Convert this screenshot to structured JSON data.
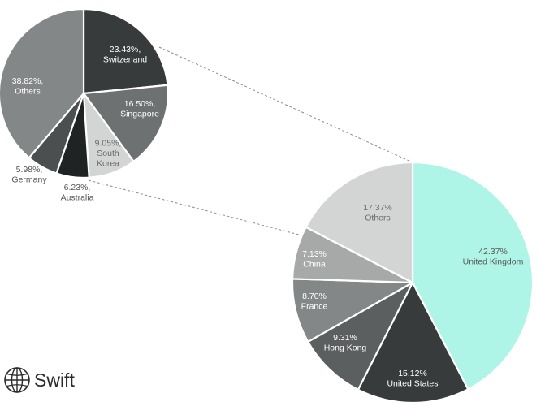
{
  "chart_data": [
    {
      "type": "pie",
      "unit": "%",
      "slices": [
        {
          "label": "United Kingdom",
          "value": 42.37,
          "value_text": "42.37%",
          "color": "#aef5e8",
          "text_color": "#5a5a5a"
        },
        {
          "label": "United States",
          "value": 15.12,
          "value_text": "15.12%",
          "color": "#373b3b",
          "text_color": "#ffffff"
        },
        {
          "label": "Hong Kong",
          "value": 9.31,
          "value_text": "9.31%",
          "color": "#5c5f5f",
          "text_color": "#ffffff"
        },
        {
          "label": "France",
          "value": 8.7,
          "value_text": "8.70%",
          "color": "#848787",
          "text_color": "#ffffff"
        },
        {
          "label": "China",
          "value": 7.13,
          "value_text": "7.13%",
          "color": "#a7a9a9",
          "text_color": "#ffffff"
        },
        {
          "label": "Others",
          "value": 17.37,
          "value_text": "17.37%",
          "color": "#d3d4d4",
          "text_color": "#6b6b6b"
        }
      ]
    },
    {
      "type": "pie",
      "unit": "%",
      "slices": [
        {
          "label": "Switzerland",
          "value": 23.43,
          "value_text": "23.43%,",
          "color": "#373b3b",
          "text_color": "#ffffff"
        },
        {
          "label": "Singapore",
          "value": 16.5,
          "value_text": "16.50%,",
          "color": "#6e7171",
          "text_color": "#ffffff"
        },
        {
          "label": "South Korea",
          "value": 9.05,
          "value_text": "9.05%,",
          "color": "#d3d4d4",
          "text_color": "#6b6b6b"
        },
        {
          "label": "Australia",
          "value": 6.23,
          "value_text": "6.23%,",
          "color": "#1f2323",
          "text_color": "#555555"
        },
        {
          "label": "Germany",
          "value": 5.98,
          "value_text": "5.98%,",
          "color": "#4c4f4f",
          "text_color": "#555555"
        },
        {
          "label": "Others",
          "value": 38.82,
          "value_text": "38.82%,",
          "color": "#848787",
          "text_color": "#ffffff"
        }
      ]
    }
  ],
  "logo": {
    "text": "Swift",
    "icon": "globe-icon"
  }
}
